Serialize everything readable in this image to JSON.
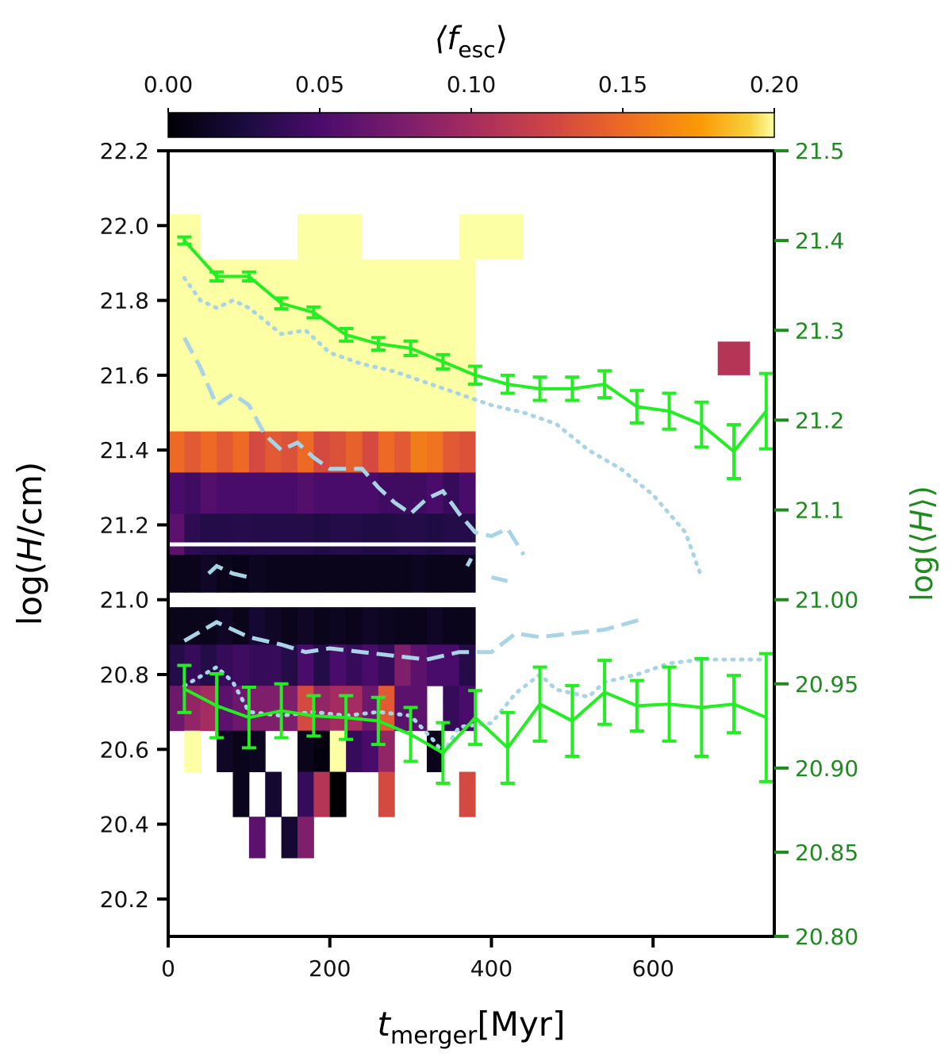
{
  "chart_data": {
    "type": "heatmap",
    "colorbar": {
      "label_main": "⟨f",
      "label_sub": "esc",
      "label_end": "⟩",
      "range": [
        0.0,
        0.2
      ],
      "ticks": [
        0.0,
        0.05,
        0.1,
        0.15,
        0.2
      ],
      "tick_labels": [
        "0.00",
        "0.05",
        "0.10",
        "0.15",
        "0.20"
      ],
      "colormap": "inferno"
    },
    "xaxis": {
      "label_main": "t",
      "label_sub": "merger",
      "label_end": "[Myr]",
      "range": [
        0,
        750
      ],
      "ticks": [
        0,
        200,
        400,
        600
      ],
      "tick_labels": [
        "0",
        "200",
        "400",
        "600"
      ]
    },
    "yaxis_left": {
      "label_pre": "log(",
      "label_italic": "H",
      "label_post": "/cm)",
      "range": [
        20.1,
        22.2
      ],
      "ticks": [
        20.2,
        20.4,
        20.6,
        20.8,
        21.0,
        21.2,
        21.4,
        21.6,
        21.8,
        22.0,
        22.2
      ],
      "tick_labels": [
        "20.2",
        "20.4",
        "20.6",
        "20.8",
        "21.0",
        "21.2",
        "21.4",
        "21.6",
        "21.8",
        "22.0",
        "22.2"
      ]
    },
    "yaxis_right": {
      "label_pre": "log(⟨",
      "label_italic": "H",
      "label_post": "⟩)",
      "color": "#1f8a1f",
      "upper_range": [
        21.0,
        21.5
      ],
      "upper_ticks": [
        21.0,
        21.1,
        21.2,
        21.3,
        21.4,
        21.5
      ],
      "upper_tick_labels": [
        "21.00",
        "21.1",
        "21.2",
        "21.3",
        "21.4",
        "21.5"
      ],
      "lower_range": [
        20.8,
        21.0
      ],
      "lower_ticks": [
        20.8,
        20.85,
        20.9,
        20.95
      ],
      "lower_tick_labels": [
        "20.80",
        "20.85",
        "20.90",
        "20.95"
      ]
    },
    "bins": {
      "x_edges": [
        0,
        20,
        40,
        60,
        80,
        100,
        120,
        140,
        160,
        180,
        200,
        220,
        240,
        260,
        280,
        300,
        320,
        340,
        360,
        380,
        400,
        420,
        440,
        460,
        480,
        500,
        520,
        540,
        560,
        580,
        600,
        620,
        640,
        660,
        680,
        700,
        720,
        740
      ],
      "upper_bands": [
        {
          "y0": 21.45,
          "y1": 22.03,
          "label": "top"
        },
        {
          "y0": 21.34,
          "y1": 21.45,
          "label": "orange"
        },
        {
          "y0": 21.23,
          "y1": 21.34,
          "label": "purple"
        },
        {
          "y0": 21.12,
          "y1": 21.23,
          "label": "violet"
        },
        {
          "y0": 21.02,
          "y1": 21.12,
          "label": "dark"
        }
      ],
      "upper_values": [
        [
          0.2,
          0.15,
          0.05,
          0.06,
          0.01
        ],
        [
          0.2,
          0.14,
          0.045,
          0.035,
          0.01
        ],
        [
          0.2,
          0.15,
          0.055,
          0.03,
          0.015
        ],
        [
          0.2,
          0.14,
          0.05,
          0.03,
          0.01
        ],
        [
          0.2,
          0.15,
          0.05,
          0.032,
          0.008
        ],
        [
          0.2,
          0.13,
          0.05,
          0.03,
          0.012
        ],
        [
          0.2,
          0.14,
          0.05,
          0.03,
          0.01
        ],
        [
          0.2,
          0.135,
          0.05,
          0.03,
          0.01
        ],
        [
          0.2,
          0.15,
          0.055,
          0.03,
          0.01
        ],
        [
          0.2,
          0.13,
          0.05,
          0.028,
          0.01
        ],
        [
          0.2,
          0.135,
          0.05,
          0.03,
          0.01
        ],
        [
          0.2,
          0.145,
          0.05,
          0.03,
          0.01
        ],
        [
          0.2,
          0.13,
          0.05,
          0.028,
          0.01
        ],
        [
          0.2,
          0.15,
          0.045,
          0.028,
          0.01
        ],
        [
          0.2,
          0.14,
          0.045,
          0.03,
          0.01
        ],
        [
          0.2,
          0.16,
          0.045,
          0.03,
          0.012
        ],
        [
          0.2,
          0.155,
          0.05,
          0.028,
          0.01
        ],
        [
          0.2,
          0.14,
          0.04,
          0.03,
          0.01
        ],
        [
          0.2,
          0.135,
          0.05,
          0.03,
          0.01
        ]
      ],
      "upper_extra": [
        {
          "x0": 0,
          "x1": 40,
          "y0": 21.91,
          "y1": 22.03,
          "value": 0.2
        },
        {
          "x0": 160,
          "x1": 240,
          "y0": 21.91,
          "y1": 22.03,
          "value": 0.2
        },
        {
          "x0": 360,
          "x1": 440,
          "y0": 21.91,
          "y1": 22.03,
          "value": 0.2
        }
      ],
      "upper_blank": [
        {
          "x0": 40,
          "x1": 160,
          "y0": 21.91,
          "y1": 22.03
        },
        {
          "x0": 240,
          "x1": 360,
          "y0": 21.91,
          "y1": 22.03
        },
        {
          "x0": 440,
          "x1": 760,
          "y0": 21.91,
          "y1": 22.03
        },
        {
          "x0": 600,
          "x1": 640,
          "y0": 21.8,
          "y1": 21.91
        },
        {
          "x0": 680,
          "x1": 760,
          "y0": 21.8,
          "y1": 21.91
        },
        {
          "x0": 640,
          "x1": 680,
          "y0": 21.69,
          "y1": 21.8
        },
        {
          "x0": 680,
          "x1": 720,
          "y0": 21.53,
          "y1": 21.58
        }
      ],
      "upper_override": [
        {
          "x0": 680,
          "x1": 720,
          "y0": 21.6,
          "y1": 21.69,
          "value": 0.11
        }
      ],
      "lower_rows": [
        {
          "y0": 20.88,
          "y1": 20.98
        },
        {
          "y0": 20.77,
          "y1": 20.88
        },
        {
          "y0": 20.65,
          "y1": 20.77
        },
        {
          "y0": 20.54,
          "y1": 20.65
        },
        {
          "y0": 20.42,
          "y1": 20.54
        },
        {
          "y0": 20.31,
          "y1": 20.42
        }
      ],
      "lower_cells": [
        [
          0.01,
          0.03,
          0.07,
          null,
          null,
          null
        ],
        [
          0.01,
          0.04,
          0.09,
          0.2,
          null,
          null
        ],
        [
          0.01,
          0.03,
          0.1,
          null,
          null,
          null
        ],
        [
          0.015,
          0.04,
          0.06,
          0.015,
          null,
          null
        ],
        [
          0.01,
          0.045,
          0.07,
          0.01,
          0.01,
          null
        ],
        [
          0.02,
          0.04,
          0.08,
          0.012,
          null,
          0.06
        ],
        [
          0.015,
          0.04,
          0.08,
          null,
          0.02,
          null
        ],
        [
          0.01,
          0.03,
          0.08,
          null,
          null,
          0.02
        ],
        [
          0.015,
          0.05,
          0.13,
          0.01,
          0.04,
          0.08
        ],
        [
          0.01,
          0.03,
          0.09,
          0.005,
          0.11,
          null
        ],
        [
          0.012,
          0.05,
          0.1,
          0.2,
          0.0,
          null
        ],
        [
          0.01,
          0.04,
          0.1,
          0.04,
          null,
          null
        ],
        [
          0.015,
          0.05,
          0.07,
          0.05,
          null,
          null
        ],
        [
          0.012,
          0.04,
          0.14,
          0.09,
          0.13,
          null
        ],
        [
          0.01,
          0.08,
          0.06,
          null,
          null,
          null
        ],
        [
          0.01,
          0.06,
          0.06,
          null,
          null,
          null
        ],
        [
          0.015,
          0.05,
          null,
          0.01,
          null,
          null
        ],
        [
          0.01,
          0.05,
          0.04,
          null,
          null,
          null
        ],
        [
          0.01,
          0.03,
          0.05,
          null,
          0.13,
          null
        ]
      ]
    },
    "series": [
      {
        "name": "mean_H_upper",
        "axis": "right_upper",
        "color": "#22ee22",
        "x": [
          20,
          60,
          100,
          140,
          180,
          220,
          260,
          300,
          340,
          380,
          420,
          460,
          500,
          540,
          580,
          620,
          660,
          700,
          740
        ],
        "y": [
          21.4,
          21.36,
          21.36,
          21.33,
          21.32,
          21.295,
          21.285,
          21.28,
          21.265,
          21.25,
          21.24,
          21.235,
          21.235,
          21.24,
          21.215,
          21.21,
          21.195,
          21.165,
          21.21
        ],
        "err": [
          0.004,
          0.005,
          0.005,
          0.006,
          0.006,
          0.007,
          0.007,
          0.008,
          0.008,
          0.01,
          0.01,
          0.013,
          0.013,
          0.015,
          0.018,
          0.02,
          0.025,
          0.03,
          0.042
        ]
      },
      {
        "name": "mean_H_lower",
        "axis": "right_lower",
        "color": "#22ee22",
        "x": [
          20,
          60,
          100,
          140,
          180,
          220,
          260,
          300,
          340,
          380,
          420,
          460,
          500,
          540,
          580,
          620,
          660,
          700,
          740
        ],
        "y": [
          20.947,
          20.937,
          20.93,
          20.934,
          20.931,
          20.93,
          20.928,
          20.92,
          20.909,
          20.93,
          20.912,
          20.938,
          20.928,
          20.945,
          20.937,
          20.938,
          20.936,
          20.938,
          20.93
        ],
        "err": [
          0.014,
          0.019,
          0.018,
          0.016,
          0.012,
          0.013,
          0.014,
          0.016,
          0.018,
          0.016,
          0.021,
          0.022,
          0.021,
          0.019,
          0.015,
          0.022,
          0.029,
          0.017,
          0.038
        ]
      },
      {
        "name": "dotted_upper",
        "axis": "left",
        "color": "#a8d4e6",
        "x": [
          20,
          40,
          60,
          80,
          100,
          140,
          170,
          200,
          240,
          280,
          320,
          360,
          400,
          440,
          480,
          520,
          560,
          600,
          640,
          660
        ],
        "y": [
          21.86,
          21.8,
          21.78,
          21.8,
          21.78,
          21.71,
          21.72,
          21.66,
          21.63,
          21.61,
          21.58,
          21.55,
          21.52,
          21.5,
          21.47,
          21.4,
          21.35,
          21.28,
          21.18,
          21.06
        ]
      },
      {
        "name": "dashed_upper",
        "axis": "left",
        "color": "#a8d4e6",
        "segments": [
          {
            "x": [
              20,
              40,
              60,
              80,
              100,
              120,
              140,
              160,
              180,
              200,
              220,
              240,
              260,
              280,
              300,
              320,
              340,
              360,
              380,
              400,
              420,
              440
            ],
            "y": [
              21.7,
              21.62,
              21.52,
              21.55,
              21.52,
              21.44,
              21.4,
              21.42,
              21.38,
              21.35,
              21.35,
              21.35,
              21.3,
              21.26,
              21.23,
              21.27,
              21.29,
              21.23,
              21.18,
              21.17,
              21.19,
              21.12
            ]
          },
          {
            "x": [
              50,
              60,
              80,
              100
            ],
            "y": [
              21.07,
              21.09,
              21.07,
              21.06
            ]
          },
          {
            "x": [
              370,
              375
            ],
            "y": [
              21.09,
              21.11
            ]
          },
          {
            "x": [
              400,
              420
            ],
            "y": [
              21.06,
              21.05
            ]
          }
        ]
      },
      {
        "name": "dashed_lower",
        "axis": "left",
        "color": "#a8d4e6",
        "x": [
          20,
          60,
          100,
          140,
          170,
          200,
          240,
          280,
          320,
          360,
          400,
          430,
          460,
          500,
          540,
          590
        ],
        "y": [
          20.89,
          20.94,
          20.9,
          20.88,
          20.86,
          20.87,
          20.86,
          20.85,
          20.84,
          20.86,
          20.86,
          20.91,
          20.9,
          20.91,
          20.92,
          20.95
        ]
      },
      {
        "name": "dotted_lower",
        "axis": "left",
        "color": "#a8d4e6",
        "x": [
          20,
          60,
          80,
          100,
          140,
          180,
          220,
          260,
          300,
          330,
          340,
          360,
          400,
          430,
          460,
          480,
          520,
          540,
          580,
          620,
          660,
          700,
          740
        ],
        "y": [
          20.77,
          20.82,
          20.78,
          20.7,
          20.69,
          20.7,
          20.69,
          20.7,
          20.69,
          20.62,
          20.59,
          20.66,
          20.67,
          20.75,
          20.8,
          20.76,
          20.74,
          20.78,
          20.8,
          20.83,
          20.84,
          20.84,
          20.84
        ]
      }
    ]
  }
}
